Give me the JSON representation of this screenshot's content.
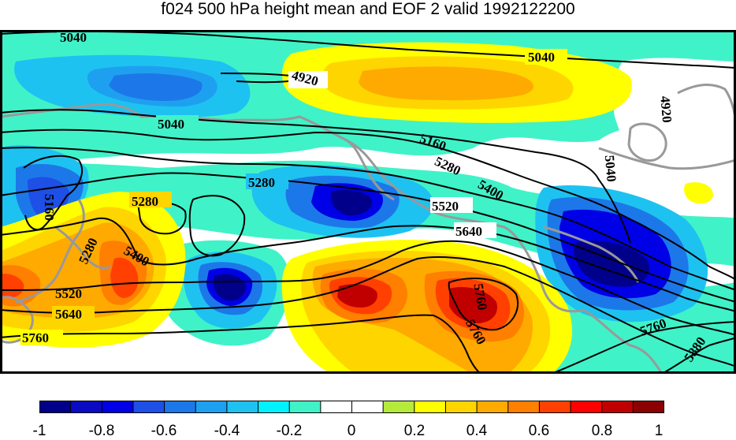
{
  "title": "f024 500 hPa height mean and EOF 2 valid 1992122200",
  "colors": {
    "c-1.0": "#00008b",
    "c-0.9": "#0a0ac2",
    "c-0.8": "#0000e6",
    "c-0.7": "#1e4fe6",
    "c-0.6": "#1c78e8",
    "c-0.5": "#1ea0f0",
    "c-0.4": "#1ec2f0",
    "c-0.3": "#00f2ff",
    "c-0.2": "#40f2c8",
    "c-0.1": "#ffffff",
    "c0.0": "#ffffff",
    "c0.1": "#b6ea3a",
    "c0.2": "#ffff00",
    "c0.3": "#ffd500",
    "c0.4": "#ffaa00",
    "c0.5": "#ff7f00",
    "c0.6": "#ff4000",
    "c0.7": "#ff0000",
    "c0.8": "#c00000",
    "c0.9": "#8b0000",
    "coastline": "#999999",
    "contour": "#000000"
  },
  "colorbar": {
    "tick_labels": [
      "-1",
      "-0.8",
      "-0.6",
      "-0.4",
      "-0.2",
      "0",
      "0.2",
      "0.4",
      "0.6",
      "0.8",
      "1"
    ]
  },
  "contour_labels": {
    "l5040a": "5040",
    "l5040b": "5040",
    "l5040c": "5040",
    "l5040d": "5040",
    "l4920a": "4920",
    "l4920b": "4920",
    "l5160a": "5160",
    "l5160b": "5160",
    "l5280a": "5280",
    "l5280b": "5280",
    "l5280c": "5280",
    "l5280d": "5280",
    "l5400a": "5400",
    "l5400b": "5400",
    "l5520a": "5520",
    "l5520b": "5520",
    "l5640a": "5640",
    "l5640b": "5640",
    "l5760a": "5760",
    "l5760b": "5760",
    "l5760c": "5760",
    "l5760d": "5760",
    "l5880": "5880"
  }
}
